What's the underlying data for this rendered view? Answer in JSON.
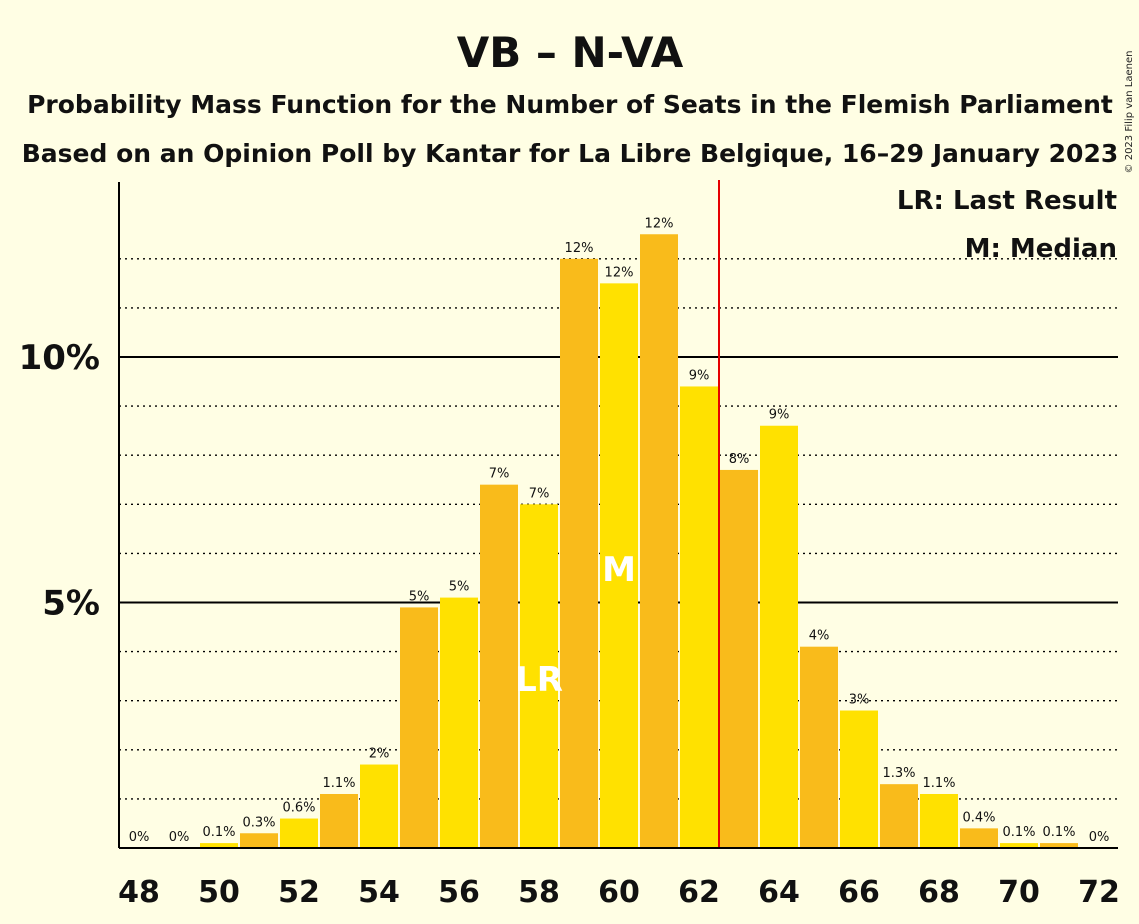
{
  "chart_data": {
    "type": "bar",
    "title": "VB – N-VA",
    "subtitle_1": "Probability Mass Function for the Number of Seats in the Flemish Parliament",
    "subtitle_2": "Based on an Opinion Poll by Kantar for La Libre Belgique, 16–29 January 2023",
    "copyright": "© 2023 Filip van Laenen",
    "x": [
      48,
      49,
      50,
      51,
      52,
      53,
      54,
      55,
      56,
      57,
      58,
      59,
      60,
      61,
      62,
      63,
      64,
      65,
      66,
      67,
      68,
      69,
      70,
      71,
      72
    ],
    "x_tick_labels": [
      "48",
      "50",
      "52",
      "54",
      "56",
      "58",
      "60",
      "62",
      "64",
      "66",
      "68",
      "70",
      "72"
    ],
    "values": [
      0,
      0,
      0.1,
      0.3,
      0.6,
      1.1,
      1.7,
      4.9,
      5.1,
      7.4,
      7.0,
      12.0,
      11.5,
      12.5,
      9.4,
      7.7,
      8.6,
      4.1,
      2.8,
      1.3,
      1.1,
      0.4,
      0.1,
      0.1,
      0
    ],
    "data_labels": [
      "0%",
      "0%",
      "0.1%",
      "0.3%",
      "0.6%",
      "1.1%",
      "2%",
      "5%",
      "5%",
      "7%",
      "7%",
      "12%",
      "12%",
      "12%",
      "9%",
      "8%",
      "9%",
      "4%",
      "3%",
      "1.3%",
      "1.1%",
      "0.4%",
      "0.1%",
      "0.1%",
      "0%"
    ],
    "y_tick_labels": [
      "5%",
      "10%"
    ],
    "y_ticks": [
      5,
      10
    ],
    "ylim": [
      0,
      13.6
    ],
    "grid": "dotted every 1%, solid at 5% and 10%",
    "majority_line_x": 62.5,
    "last_result_seat": 58,
    "median_seat": 60,
    "last_result_marker": "LR",
    "median_marker": "M",
    "legend": {
      "last_result": "LR: Last Result",
      "median": "M: Median",
      "placement": "top-right"
    },
    "colors": {
      "background": "#FFFEE4",
      "bar_even": "#FFE100",
      "bar_odd": "#F9BB1B",
      "majority_line": "#E60000",
      "axis": "#000000"
    }
  }
}
